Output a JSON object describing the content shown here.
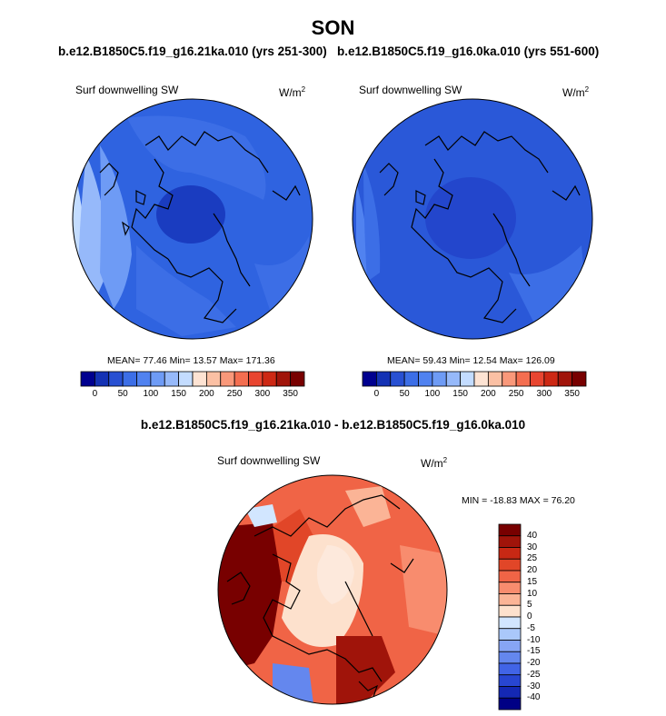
{
  "figure": {
    "title": "SON",
    "subtitle_left": "b.e12.B1850C5.f19_g16.21ka.010 (yrs 251-300)",
    "subtitle_right": "b.e12.B1850C5.f19_g16.0ka.010 (yrs 551-600)",
    "difference_title": "b.e12.B1850C5.f19_g16.21ka.010 - b.e12.B1850C5.f19_g16.0ka.010"
  },
  "panels": [
    {
      "id": "left",
      "variable": "Surf downwelling SW",
      "units_base": "W/m",
      "units_exp": "2",
      "stats": "MEAN= 77.46  Min= 13.57  Max= 171.36"
    },
    {
      "id": "right",
      "variable": "Surf downwelling SW",
      "units_base": "W/m",
      "units_exp": "2",
      "stats": "MEAN= 59.43  Min= 12.54  Max= 126.09"
    },
    {
      "id": "diff",
      "variable": "Surf downwelling SW",
      "units_base": "W/m",
      "units_exp": "2",
      "stats": "MIN = -18.83 MAX = 76.20"
    }
  ],
  "colorbar_horizontal": {
    "colors": [
      "#00008f",
      "#1432b4",
      "#2850d2",
      "#3c6ee6",
      "#5082f0",
      "#6e9bf5",
      "#96b9fa",
      "#c3dcff",
      "#fde3d3",
      "#fbc0a4",
      "#f9987a",
      "#f46e50",
      "#e84530",
      "#cd2814",
      "#a0140a",
      "#780000"
    ],
    "tick_labels": [
      "0",
      "50",
      "100",
      "150",
      "200",
      "250",
      "300",
      "350"
    ]
  },
  "colorbar_vertical": {
    "colors": [
      "#780000",
      "#a0140a",
      "#c82814",
      "#e14628",
      "#f06446",
      "#f88c6e",
      "#fbb496",
      "#fde1cd",
      "#d2e6ff",
      "#aac8fa",
      "#87a5f5",
      "#6487ee",
      "#4164e6",
      "#2846d2",
      "#1428b4",
      "#000085"
    ],
    "tick_labels": [
      "40",
      "30",
      "25",
      "20",
      "15",
      "10",
      "5",
      "0",
      "-5",
      "-10",
      "-15",
      "-20",
      "-25",
      "-30",
      "-40"
    ]
  }
}
